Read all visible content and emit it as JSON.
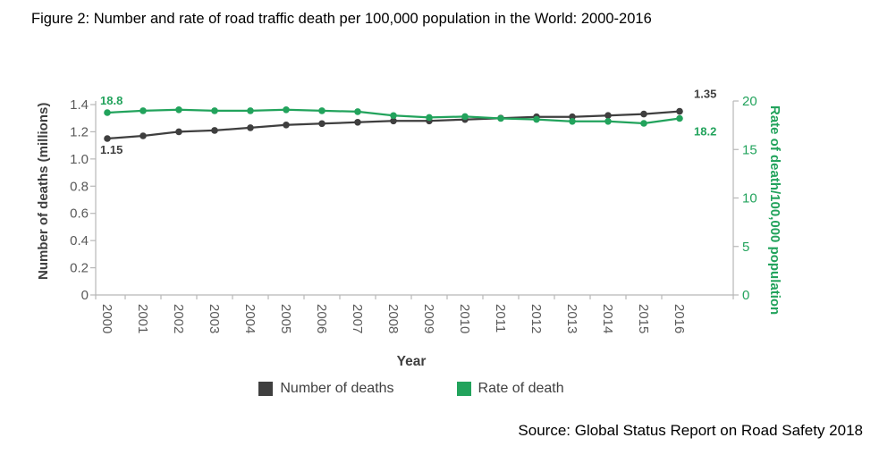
{
  "figure": {
    "title": "Figure 2: Number and rate of road traffic death per 100,000 population in the World: 2000-2016",
    "source": "Source: Global Status Report on Road Safety 2018"
  },
  "colors": {
    "deaths_series": "#3F3F3F",
    "rate_series": "#22A35C",
    "axis_text": "#595959",
    "axis_line": "#B7B7B7",
    "title_text": "#000000"
  },
  "chart_data": {
    "type": "line",
    "title": "Figure 2: Number and rate of road traffic death per 100,000 population in the World: 2000-2016",
    "x_label": "Year",
    "y_left_label": "Number of deaths (millions)",
    "y_right_label": "Rate of death/100,000 population",
    "categories": [
      "2000",
      "2001",
      "2002",
      "2003",
      "2004",
      "2005",
      "2006",
      "2007",
      "2008",
      "2009",
      "2010",
      "2011",
      "2012",
      "2013",
      "2014",
      "2015",
      "2016"
    ],
    "y_left_range": [
      0,
      1.4
    ],
    "y_right_range": [
      0,
      20
    ],
    "y_left_tick_labels": [
      "1.4",
      "1.2",
      "1.0",
      "0.8",
      "0.6",
      "0.4",
      "0.2",
      "0"
    ],
    "y_right_tick_labels": [
      "20",
      "15",
      "10",
      "5",
      "0"
    ],
    "grid": false,
    "legend_position": "bottom",
    "series": [
      {
        "name": "Number of deaths",
        "axis": "left",
        "color": "#3F3F3F",
        "values": [
          1.15,
          1.17,
          1.2,
          1.21,
          1.23,
          1.25,
          1.26,
          1.27,
          1.28,
          1.28,
          1.29,
          1.3,
          1.31,
          1.31,
          1.32,
          1.33,
          1.35
        ]
      },
      {
        "name": "Rate of death",
        "axis": "right",
        "color": "#22A35C",
        "values": [
          18.8,
          19.0,
          19.1,
          19.0,
          19.0,
          19.1,
          19.0,
          18.9,
          18.5,
          18.3,
          18.4,
          18.2,
          18.1,
          17.9,
          17.9,
          17.7,
          18.2
        ]
      }
    ],
    "annotations": [
      {
        "text": "18.8",
        "series_index": 1,
        "category": "2000",
        "position": "above-left"
      },
      {
        "text": "1.15",
        "series_index": 0,
        "category": "2000",
        "position": "below-left"
      },
      {
        "text": "1.35",
        "series_index": 0,
        "category": "2016",
        "position": "above-right"
      },
      {
        "text": "18.2",
        "series_index": 1,
        "category": "2016",
        "position": "below-right"
      }
    ]
  }
}
